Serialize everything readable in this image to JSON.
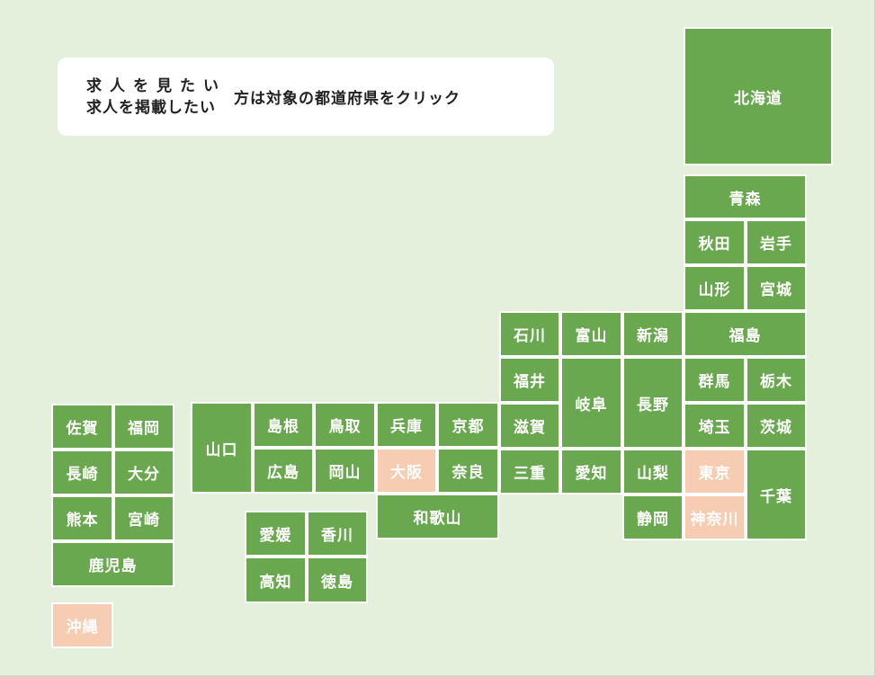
{
  "instruction": {
    "line1": "求人を見たい",
    "line2": "求人を掲載したい",
    "tail": "方は対象の都道府県をクリック"
  },
  "colors": {
    "background": "#e4efdc",
    "prefecture": "#6aa84f",
    "highlight": "#f6cdb2"
  },
  "prefectures": [
    {
      "id": "hokkaido",
      "label": "北海道",
      "highlight": false
    },
    {
      "id": "aomori",
      "label": "青森",
      "highlight": false
    },
    {
      "id": "akita",
      "label": "秋田",
      "highlight": false
    },
    {
      "id": "iwate",
      "label": "岩手",
      "highlight": false
    },
    {
      "id": "yamagata",
      "label": "山形",
      "highlight": false
    },
    {
      "id": "miyagi",
      "label": "宮城",
      "highlight": false
    },
    {
      "id": "ishikawa",
      "label": "石川",
      "highlight": false
    },
    {
      "id": "toyama",
      "label": "富山",
      "highlight": false
    },
    {
      "id": "niigata",
      "label": "新潟",
      "highlight": false
    },
    {
      "id": "fukushima",
      "label": "福島",
      "highlight": false
    },
    {
      "id": "fukui",
      "label": "福井",
      "highlight": false
    },
    {
      "id": "gifu",
      "label": "岐阜",
      "highlight": false
    },
    {
      "id": "nagano",
      "label": "長野",
      "highlight": false
    },
    {
      "id": "gunma",
      "label": "群馬",
      "highlight": false
    },
    {
      "id": "tochigi",
      "label": "栃木",
      "highlight": false
    },
    {
      "id": "shiga",
      "label": "滋賀",
      "highlight": false
    },
    {
      "id": "saitama",
      "label": "埼玉",
      "highlight": false
    },
    {
      "id": "ibaraki",
      "label": "茨城",
      "highlight": false
    },
    {
      "id": "yamaguchi",
      "label": "山口",
      "highlight": false
    },
    {
      "id": "shimane",
      "label": "島根",
      "highlight": false
    },
    {
      "id": "tottori",
      "label": "鳥取",
      "highlight": false
    },
    {
      "id": "hyogo",
      "label": "兵庫",
      "highlight": false
    },
    {
      "id": "kyoto",
      "label": "京都",
      "highlight": false
    },
    {
      "id": "hiroshima",
      "label": "広島",
      "highlight": false
    },
    {
      "id": "okayama",
      "label": "岡山",
      "highlight": false
    },
    {
      "id": "osaka",
      "label": "大阪",
      "highlight": true
    },
    {
      "id": "nara",
      "label": "奈良",
      "highlight": false
    },
    {
      "id": "mie",
      "label": "三重",
      "highlight": false
    },
    {
      "id": "aichi",
      "label": "愛知",
      "highlight": false
    },
    {
      "id": "yamanashi",
      "label": "山梨",
      "highlight": false
    },
    {
      "id": "tokyo",
      "label": "東京",
      "highlight": true
    },
    {
      "id": "chiba",
      "label": "千葉",
      "highlight": false
    },
    {
      "id": "wakayama",
      "label": "和歌山",
      "highlight": false
    },
    {
      "id": "shizuoka",
      "label": "静岡",
      "highlight": false
    },
    {
      "id": "kanagawa",
      "label": "神奈川",
      "highlight": true
    },
    {
      "id": "saga",
      "label": "佐賀",
      "highlight": false
    },
    {
      "id": "fukuoka",
      "label": "福岡",
      "highlight": false
    },
    {
      "id": "nagasaki",
      "label": "長崎",
      "highlight": false
    },
    {
      "id": "oita",
      "label": "大分",
      "highlight": false
    },
    {
      "id": "kumamoto",
      "label": "熊本",
      "highlight": false
    },
    {
      "id": "miyazaki",
      "label": "宮崎",
      "highlight": false
    },
    {
      "id": "kagoshima",
      "label": "鹿児島",
      "highlight": false
    },
    {
      "id": "ehime",
      "label": "愛媛",
      "highlight": false
    },
    {
      "id": "kagawa",
      "label": "香川",
      "highlight": false
    },
    {
      "id": "kochi",
      "label": "高知",
      "highlight": false
    },
    {
      "id": "tokushima",
      "label": "徳島",
      "highlight": false
    },
    {
      "id": "okinawa",
      "label": "沖縄",
      "highlight": true
    }
  ]
}
